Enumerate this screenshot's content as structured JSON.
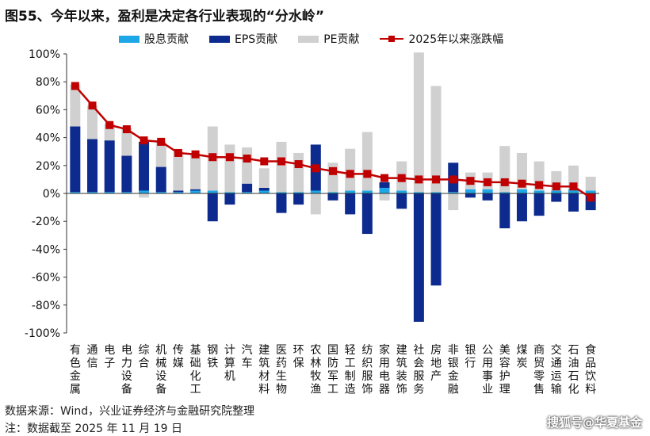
{
  "title": "图55、今年以来，盈利是决定各行业表现的“分水岭”",
  "legend": {
    "dividend": "股息贡献",
    "eps": "EPS贡献",
    "pe": "PE贡献",
    "line": "2025年以来涨跌幅"
  },
  "colors": {
    "dividend": "#1ea7e6",
    "eps": "#0d2b8f",
    "pe": "#d0d0d0",
    "line": "#c00000"
  },
  "chart_data": {
    "type": "bar",
    "stacked": true,
    "ylim": [
      -100,
      100
    ],
    "yticks": [
      -100,
      -80,
      -60,
      -40,
      -20,
      0,
      20,
      40,
      60,
      80,
      100
    ],
    "ytick_labels": [
      "-100%",
      "-80%",
      "-60%",
      "-40%",
      "-20%",
      "0%",
      "20%",
      "40%",
      "60%",
      "80%",
      "100%"
    ],
    "categories": [
      "有色金属",
      "通信",
      "电子",
      "电力设备",
      "综合",
      "机械设备",
      "传媒",
      "基础化工",
      "钢铁",
      "计算机",
      "汽车",
      "建筑材料",
      "医药生物",
      "环保",
      "农林牧渔",
      "国防军工",
      "轻工制造",
      "纺织服饰",
      "家用电器",
      "建筑装饰",
      "社会服务",
      "房地产",
      "非银金融",
      "银行",
      "公用事业",
      "美容护理",
      "煤炭",
      "商贸零售",
      "交通运输",
      "石油石化",
      "食品饮料"
    ],
    "series": [
      {
        "name": "股息贡献",
        "values": [
          1,
          1,
          1,
          1,
          2,
          1,
          1,
          2,
          2,
          1,
          1,
          2,
          1,
          1,
          2,
          1,
          2,
          2,
          4,
          2,
          1,
          1,
          1,
          3,
          3,
          1,
          3,
          2,
          2,
          3,
          2
        ]
      },
      {
        "name": "EPS贡献",
        "values": [
          47,
          38,
          37,
          26,
          35,
          18,
          1,
          1,
          -20,
          -8,
          6,
          2,
          -14,
          -8,
          33,
          -5,
          -15,
          -29,
          4,
          -11,
          -92,
          -66,
          21,
          -3,
          -5,
          -25,
          -20,
          -16,
          -6,
          -13,
          -12
        ]
      },
      {
        "name": "PE贡献",
        "values": [
          30,
          24,
          12,
          20,
          -3,
          18,
          28,
          25,
          46,
          34,
          26,
          14,
          36,
          28,
          -15,
          21,
          30,
          42,
          -5,
          21,
          100,
          76,
          -12,
          12,
          12,
          33,
          26,
          21,
          14,
          17,
          10
        ]
      }
    ],
    "line": {
      "name": "2025年以来涨跌幅",
      "values": [
        77,
        63,
        49,
        46,
        38,
        37,
        29,
        28,
        26,
        26,
        25,
        23,
        23,
        21,
        18,
        16,
        14,
        14,
        11,
        11,
        10,
        10,
        10,
        9,
        8,
        8,
        7,
        6,
        5,
        5,
        -3
      ]
    }
  },
  "source": "数据来源：Wind，兴业证券经济与金融研究院整理",
  "data_note": "注：数据截至 2025 年 11 月 19 日",
  "brand": "搜狐号@华夏基金"
}
